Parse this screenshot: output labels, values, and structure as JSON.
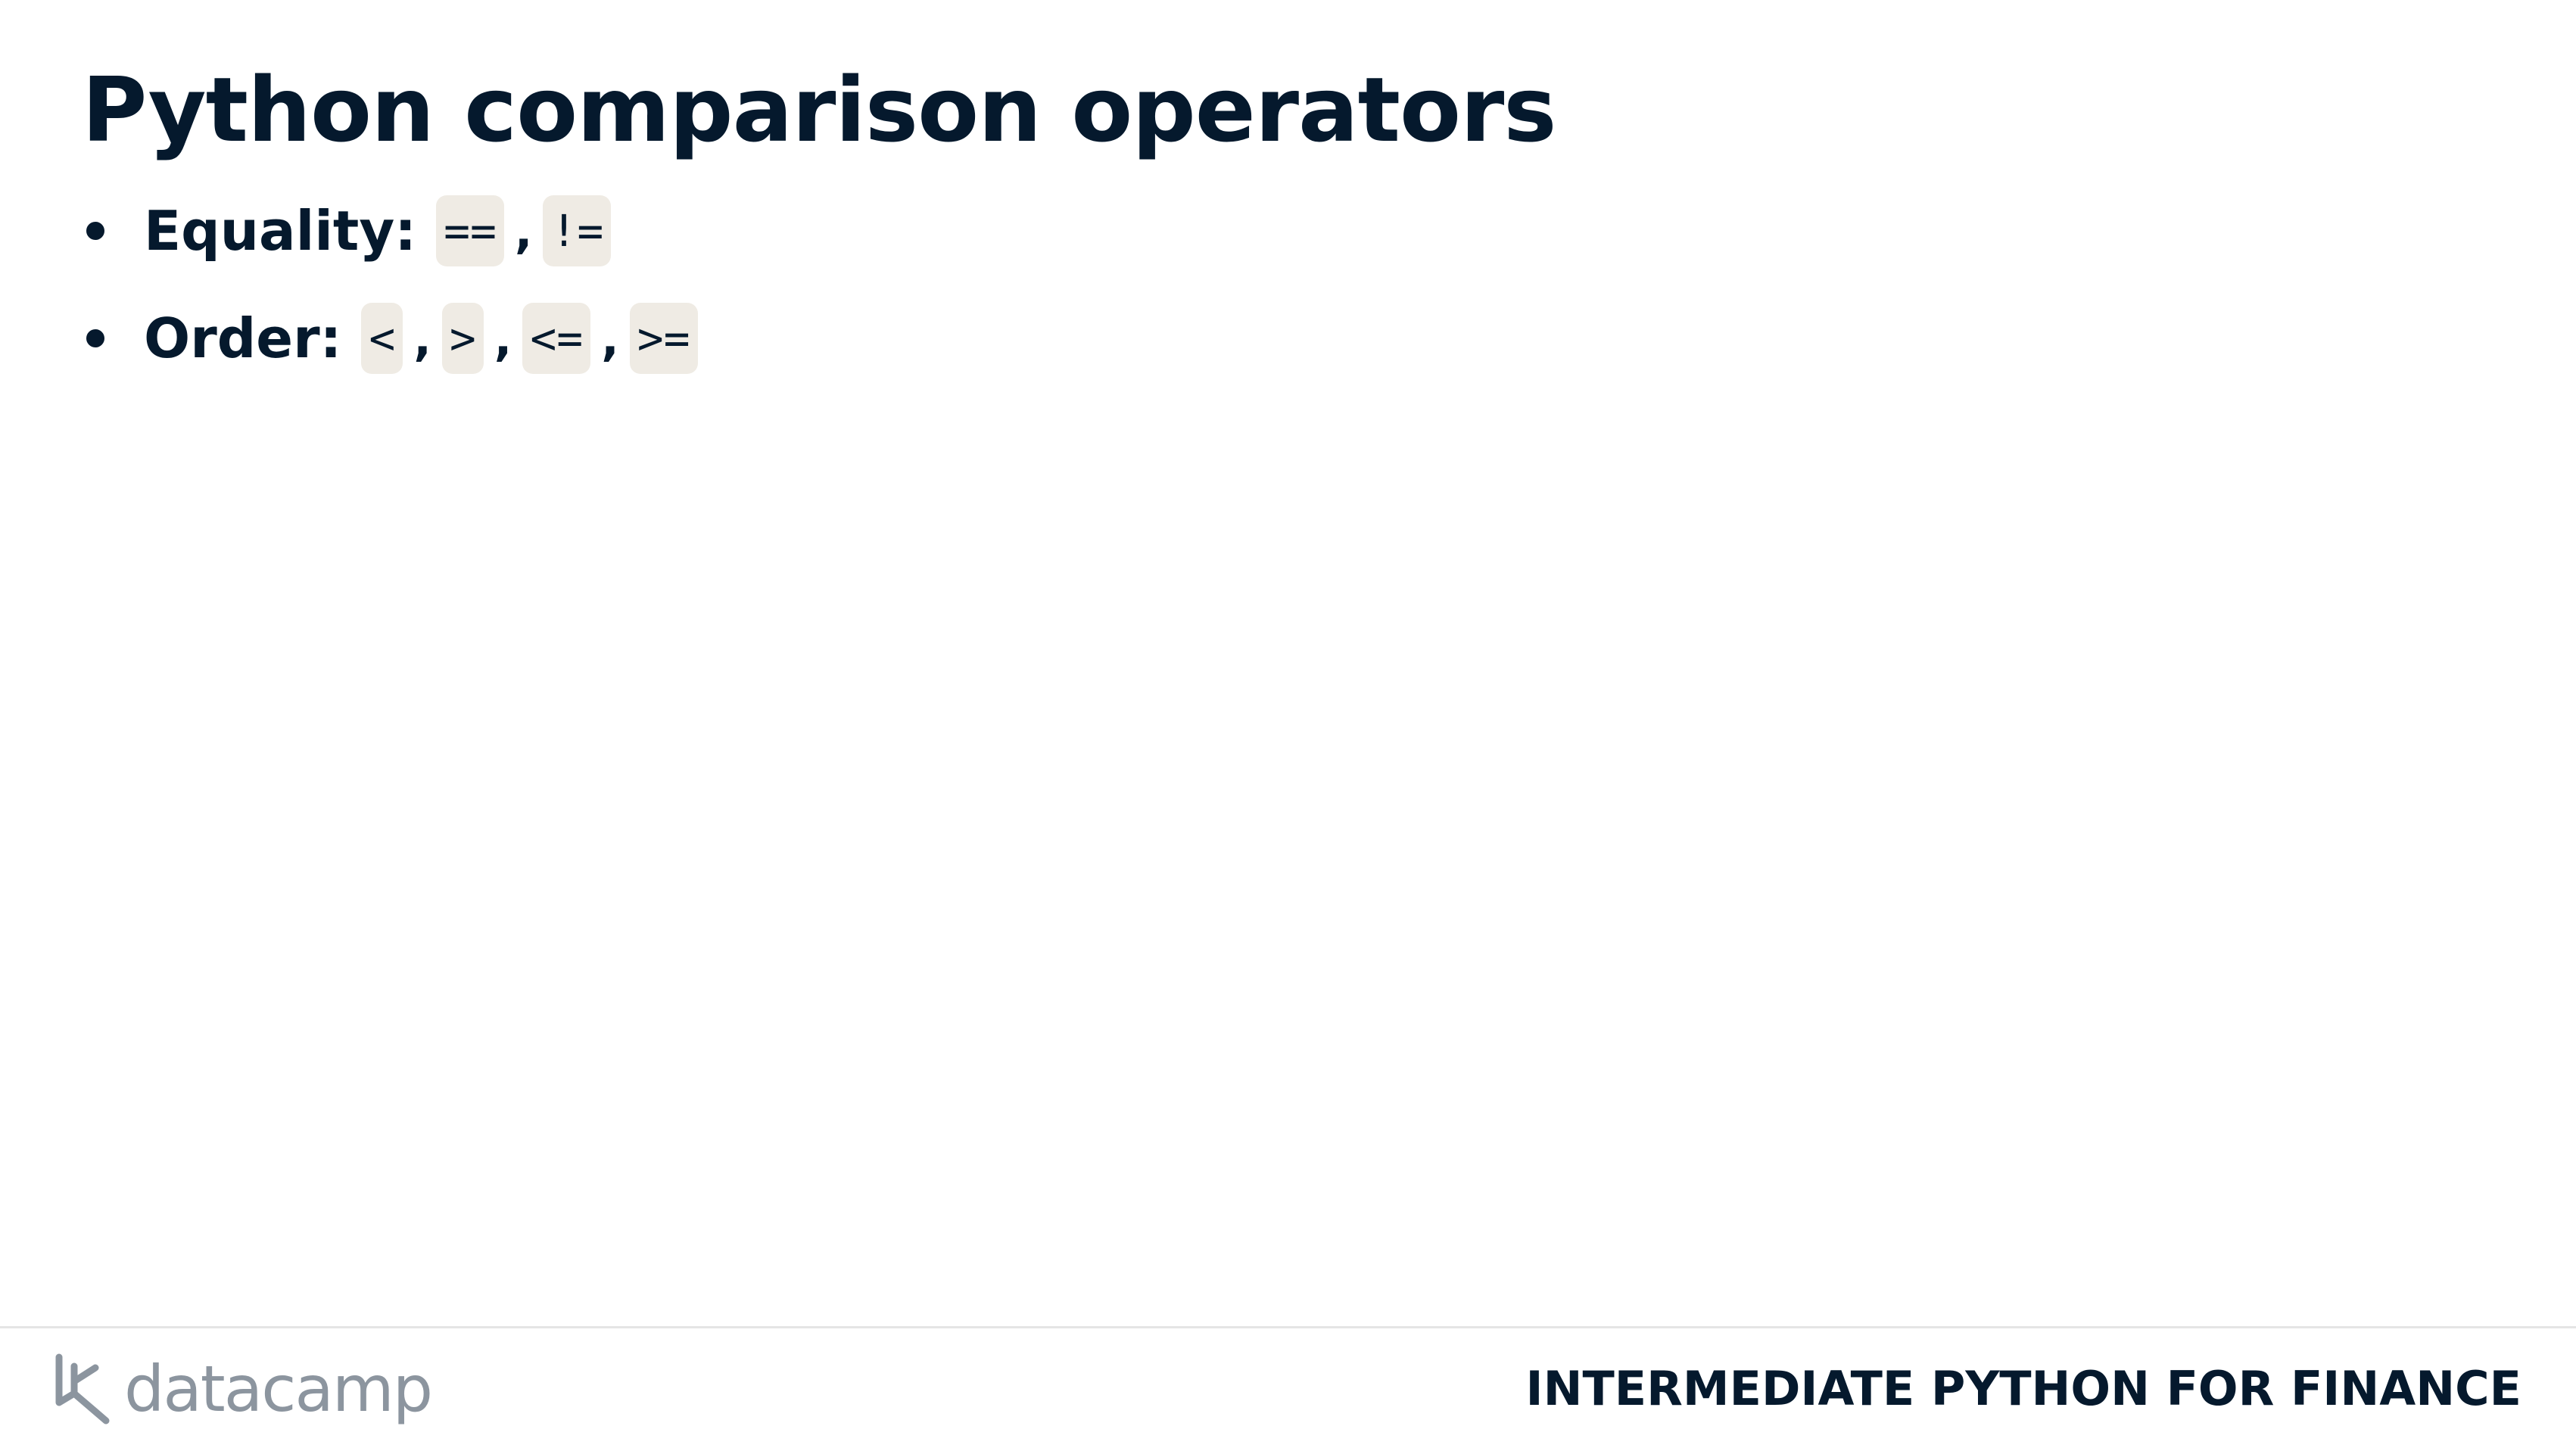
{
  "slide": {
    "title": "Python comparison operators",
    "bullets": [
      {
        "label": "Equality:",
        "operators": [
          "==",
          "!="
        ],
        "separator": ","
      },
      {
        "label": "Order:",
        "operators": [
          "<",
          ">",
          "<=",
          ">="
        ],
        "separator": ","
      }
    ]
  },
  "footer": {
    "logo_text": "datacamp",
    "course_name": "INTERMEDIATE PYTHON FOR FINANCE"
  },
  "colors": {
    "text": "#05192d",
    "code_background": "#efebe4",
    "logo": "#8c959f",
    "divider": "#e5e5e5"
  },
  "icons": {
    "logo_mark": "datacamp-logo-icon"
  }
}
